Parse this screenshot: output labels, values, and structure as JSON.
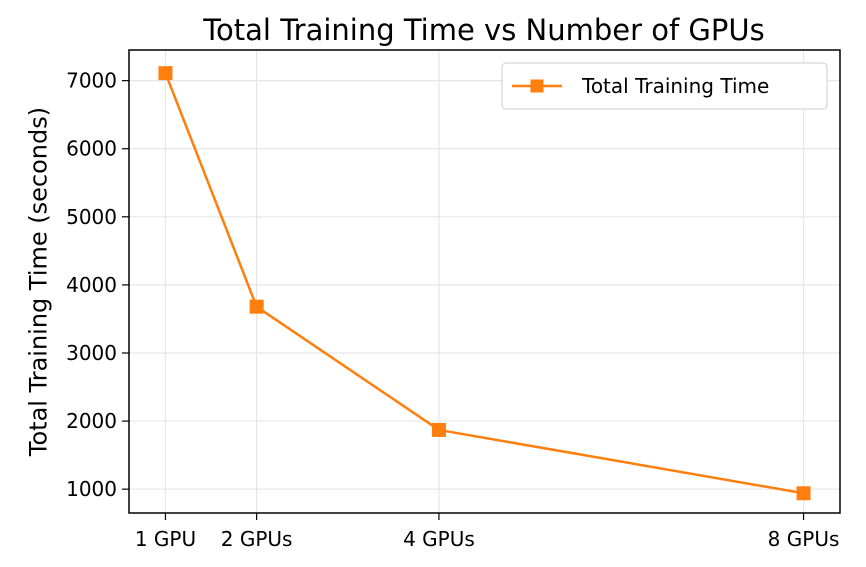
{
  "chart_data": {
    "type": "line",
    "title": "Total Training Time vs Number of GPUs",
    "xlabel": "",
    "ylabel": "Total Training Time (seconds)",
    "x": [
      1,
      2,
      4,
      8
    ],
    "x_tick_labels": [
      "1 GPU",
      "2 GPUs",
      "4 GPUs",
      "8 GPUs"
    ],
    "y_ticks": [
      1000,
      2000,
      3000,
      4000,
      5000,
      6000,
      7000
    ],
    "ylim": [
      650,
      7450
    ],
    "xlim": [
      0.6,
      8.4
    ],
    "grid": true,
    "legend_position": "top-right",
    "series": [
      {
        "name": "Total Training Time",
        "values": [
          7110,
          3680,
          1870,
          940
        ],
        "color": "#ff7f0e",
        "marker": "square"
      }
    ]
  }
}
